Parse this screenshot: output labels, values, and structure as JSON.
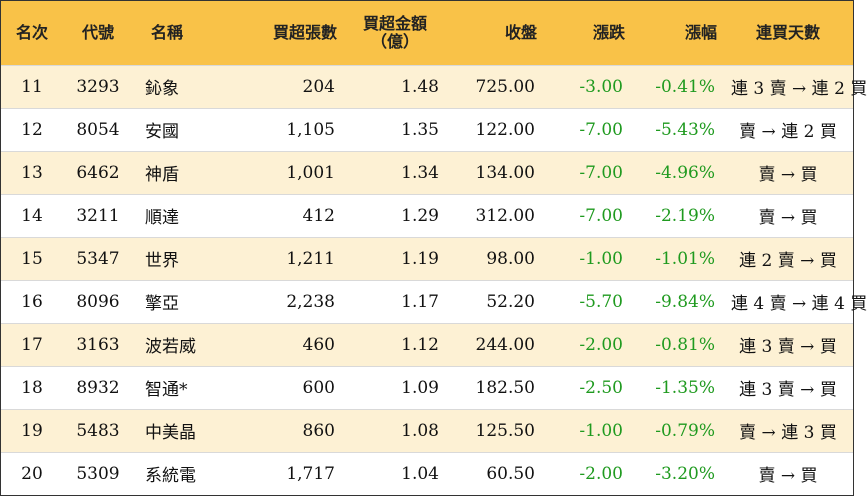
{
  "header": {
    "rank": "名次",
    "code": "代號",
    "name": "名稱",
    "net_buy_lots": "買超張數",
    "net_buy_amount_line1": "買超金額",
    "net_buy_amount_line2": "（億）",
    "close": "收盤",
    "change": "漲跌",
    "change_pct": "漲幅",
    "consecutive_days": "連買天數"
  },
  "colors": {
    "header_bg": "#f9c248",
    "odd_row_bg": "#fdf1d4",
    "negative": "#1f9a1f"
  },
  "rows": [
    {
      "rank": "11",
      "code": "3293",
      "name": "鈊象",
      "lots": "204",
      "amount": "1.48",
      "close": "725.00",
      "change": "-3.00",
      "pct": "-0.41%",
      "days": "連 3 賣 → 連 2 買"
    },
    {
      "rank": "12",
      "code": "8054",
      "name": "安國",
      "lots": "1,105",
      "amount": "1.35",
      "close": "122.00",
      "change": "-7.00",
      "pct": "-5.43%",
      "days": "賣 → 連 2 買"
    },
    {
      "rank": "13",
      "code": "6462",
      "name": "神盾",
      "lots": "1,001",
      "amount": "1.34",
      "close": "134.00",
      "change": "-7.00",
      "pct": "-4.96%",
      "days": "賣 → 買"
    },
    {
      "rank": "14",
      "code": "3211",
      "name": "順達",
      "lots": "412",
      "amount": "1.29",
      "close": "312.00",
      "change": "-7.00",
      "pct": "-2.19%",
      "days": "賣 → 買"
    },
    {
      "rank": "15",
      "code": "5347",
      "name": "世界",
      "lots": "1,211",
      "amount": "1.19",
      "close": "98.00",
      "change": "-1.00",
      "pct": "-1.01%",
      "days": "連 2 賣 → 買"
    },
    {
      "rank": "16",
      "code": "8096",
      "name": "擎亞",
      "lots": "2,238",
      "amount": "1.17",
      "close": "52.20",
      "change": "-5.70",
      "pct": "-9.84%",
      "days": "連 4 賣 → 連 4 買"
    },
    {
      "rank": "17",
      "code": "3163",
      "name": "波若威",
      "lots": "460",
      "amount": "1.12",
      "close": "244.00",
      "change": "-2.00",
      "pct": "-0.81%",
      "days": "連 3 賣 → 買"
    },
    {
      "rank": "18",
      "code": "8932",
      "name": "智通*",
      "lots": "600",
      "amount": "1.09",
      "close": "182.50",
      "change": "-2.50",
      "pct": "-1.35%",
      "days": "連 3 賣 → 買"
    },
    {
      "rank": "19",
      "code": "5483",
      "name": "中美晶",
      "lots": "860",
      "amount": "1.08",
      "close": "125.50",
      "change": "-1.00",
      "pct": "-0.79%",
      "days": "賣 → 連 3 買"
    },
    {
      "rank": "20",
      "code": "5309",
      "name": "系統電",
      "lots": "1,717",
      "amount": "1.04",
      "close": "60.50",
      "change": "-2.00",
      "pct": "-3.20%",
      "days": "賣 → 買"
    }
  ]
}
